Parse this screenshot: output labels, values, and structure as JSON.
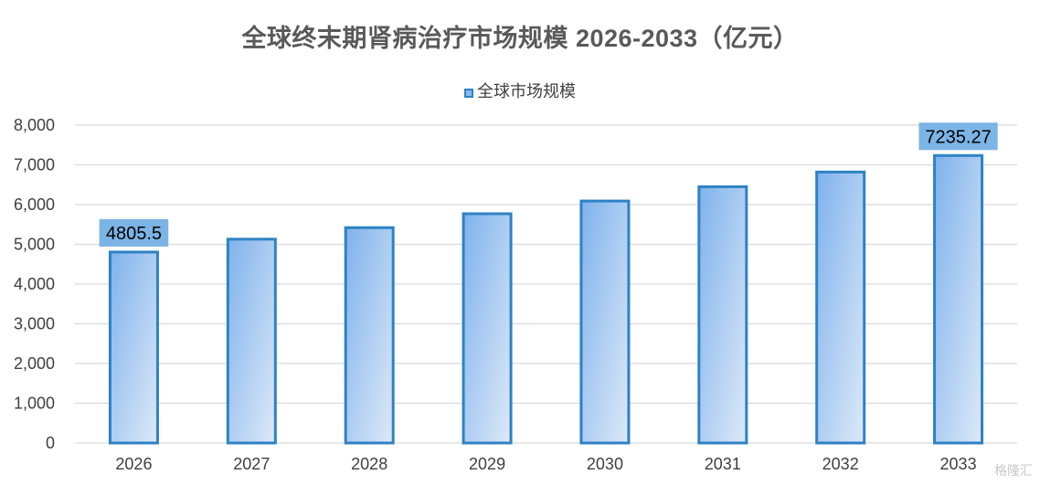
{
  "chart_data": {
    "type": "bar",
    "title": "全球终末期肾病治疗市场规模 2026-2033（亿元）",
    "categories": [
      "2026",
      "2027",
      "2028",
      "2029",
      "2030",
      "2031",
      "2032",
      "2033"
    ],
    "series": [
      {
        "name": "全球市场规模",
        "values": [
          4805.5,
          5130,
          5420,
          5770,
          6090,
          6450,
          6820,
          7235.27
        ]
      }
    ],
    "data_labels": [
      "4805.5",
      "",
      "",
      "",
      "",
      "",
      "",
      "7235.27"
    ],
    "ylim": [
      0,
      8000
    ],
    "yticks": [
      0,
      1000,
      2000,
      3000,
      4000,
      5000,
      6000,
      7000,
      8000
    ],
    "ytick_labels": [
      "0",
      "1,000",
      "2,000",
      "3,000",
      "4,000",
      "5,000",
      "6,000",
      "7,000",
      "8,000"
    ],
    "grid": true,
    "legend_position": "top-center",
    "colors": {
      "bar_fill_top": "#7fb2ec",
      "bar_fill_bottom": "#dbe8f8",
      "bar_stroke": "#2e82c4",
      "label_bg": "#7cb4e6",
      "grid": "#d9d9d9",
      "axis_text": "#404040"
    }
  },
  "watermark": "格隆汇"
}
